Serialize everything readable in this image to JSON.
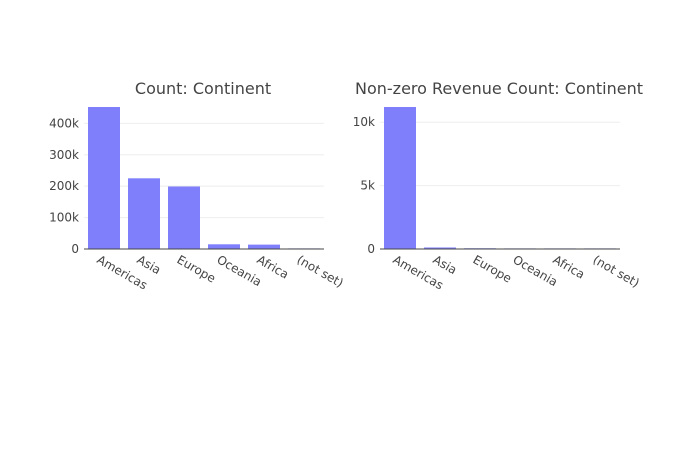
{
  "chart_data": [
    {
      "type": "bar",
      "title": "Count: Continent",
      "categories": [
        "Americas",
        "Asia",
        "Europe",
        "Oceania",
        "Africa",
        "(not set)"
      ],
      "values": [
        452000,
        225000,
        199000,
        15000,
        14000,
        1000
      ],
      "ylim": [
        0,
        452000
      ],
      "yticks": [
        0,
        100000,
        200000,
        300000,
        400000
      ],
      "ytick_labels": [
        "0",
        "100k",
        "200k",
        "300k",
        "400k"
      ],
      "bar_color": "#7f7ffb",
      "grid": true
    },
    {
      "type": "bar",
      "title": "Non-zero Revenue Count: Continent",
      "categories": [
        "Americas",
        "Asia",
        "Europe",
        "Oceania",
        "Africa",
        "(not set)"
      ],
      "values": [
        11200,
        120,
        60,
        20,
        10,
        5
      ],
      "ylim": [
        0,
        11200
      ],
      "yticks": [
        0,
        5000,
        10000
      ],
      "ytick_labels": [
        "0",
        "5k",
        "10k"
      ],
      "bar_color": "#7f7ffb",
      "grid": true
    }
  ]
}
